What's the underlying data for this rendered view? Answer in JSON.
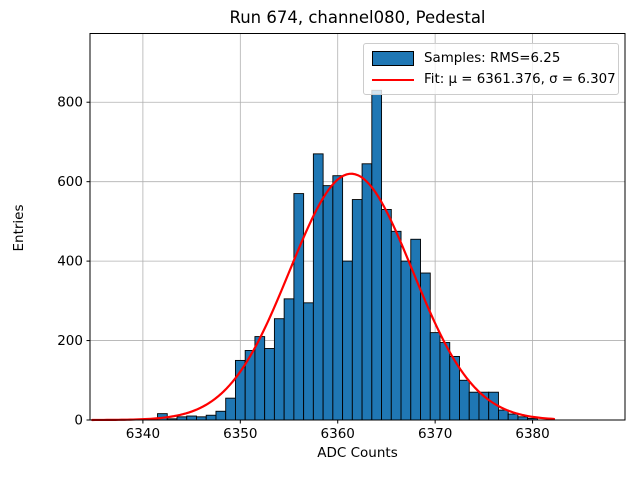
{
  "window": {
    "title": "Run 674, channel080, Pedestal"
  },
  "chart_data": {
    "type": "bar",
    "subtype": "histogram",
    "title": "Run 674, channel080, Pedestal",
    "xlabel": "ADC Counts",
    "ylabel": "Entries",
    "xlim": [
      6334.57,
      6389.49
    ],
    "ylim": [
      0,
      973
    ],
    "xticks": [
      6340,
      6350,
      6360,
      6370,
      6380
    ],
    "yticks": [
      0,
      200,
      400,
      600,
      800
    ],
    "grid": true,
    "bar_color": "#1f77b4",
    "bar_edge_color": "#000000",
    "histogram": {
      "bin_start": 6341.5,
      "bin_width": 1,
      "bin_centers_note": "bins centered on integer ADC counts 6342-6380",
      "counts": [
        16,
        3,
        8,
        10,
        8,
        12,
        22,
        55,
        150,
        175,
        210,
        180,
        255,
        305,
        570,
        295,
        670,
        590,
        615,
        400,
        555,
        645,
        830,
        530,
        475,
        400,
        455,
        370,
        220,
        195,
        160,
        100,
        70,
        70,
        70,
        25,
        15,
        8,
        4
      ]
    },
    "fit": {
      "type": "gaussian",
      "mu": 6361.376,
      "sigma": 6.307,
      "amplitude": 620,
      "x_start": 6334.8,
      "x_end": 6382.3,
      "color": "#ff0000"
    },
    "legend": {
      "position": "upper right",
      "entries": [
        {
          "handle": "patch",
          "color": "#1f77b4",
          "label": "Samples: RMS=6.25"
        },
        {
          "handle": "line",
          "color": "#ff0000",
          "label": "Fit: μ = 6361.376, σ = 6.307"
        }
      ]
    }
  }
}
